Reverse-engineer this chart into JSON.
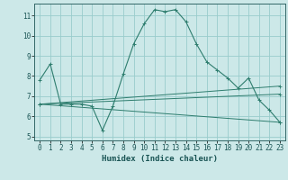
{
  "xlabel": "Humidex (Indice chaleur)",
  "background_color": "#cce8e8",
  "grid_color": "#99cccc",
  "line_color": "#2e7d6e",
  "xlim": [
    -0.5,
    23.5
  ],
  "ylim": [
    4.8,
    11.6
  ],
  "xticks": [
    0,
    1,
    2,
    3,
    4,
    5,
    6,
    7,
    8,
    9,
    10,
    11,
    12,
    13,
    14,
    15,
    16,
    17,
    18,
    19,
    20,
    21,
    22,
    23
  ],
  "yticks": [
    5,
    6,
    7,
    8,
    9,
    10,
    11
  ],
  "lines": [
    {
      "x": [
        0,
        1,
        2,
        3,
        4,
        5,
        6,
        7,
        8,
        9,
        10,
        11,
        12,
        13,
        14,
        15,
        16,
        17,
        18,
        19,
        20,
        21,
        22,
        23
      ],
      "y": [
        7.8,
        8.6,
        6.6,
        6.6,
        6.6,
        6.5,
        5.3,
        6.5,
        8.1,
        9.6,
        10.6,
        11.3,
        11.2,
        11.3,
        10.7,
        9.6,
        8.7,
        8.3,
        7.9,
        7.4,
        7.9,
        6.8,
        6.3,
        5.7
      ]
    },
    {
      "x": [
        0,
        23
      ],
      "y": [
        6.6,
        7.5
      ]
    },
    {
      "x": [
        0,
        23
      ],
      "y": [
        6.6,
        5.7
      ]
    },
    {
      "x": [
        0,
        23
      ],
      "y": [
        6.6,
        7.1
      ]
    }
  ]
}
